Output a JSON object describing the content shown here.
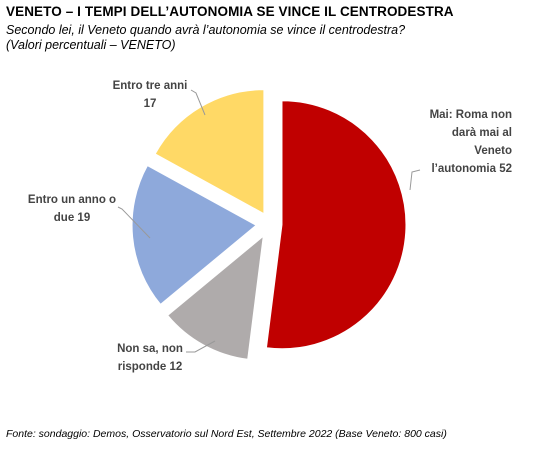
{
  "header": {
    "title": "VENETO – I TEMPI DELL’AUTONOMIA SE VINCE IL CENTRODESTRA",
    "subtitle_line1": "Secondo lei, il Veneto quando avrà l’autonomia se vince il centrodestra?",
    "subtitle_line2": "(Valori percentuali – VENETO)"
  },
  "source": "Fonte: sondaggio: Demos, Osservatorio sul Nord Est, Settembre 2022 (Base Veneto: 800 casi)",
  "chart_data": {
    "type": "pie",
    "title": "VENETO – I TEMPI DELL’AUTONOMIA SE VINCE IL CENTRODESTRA",
    "slices": [
      {
        "label_lines": [
          "Mai: Roma non",
          "darà mai al",
          "Veneto",
          "l’autonomia 52"
        ],
        "value": 52,
        "color": "#C00000"
      },
      {
        "label_lines": [
          "Non sa, non",
          "risponde 12"
        ],
        "value": 12,
        "color": "#AFABAB"
      },
      {
        "label_lines": [
          "Entro un anno o",
          "due 19"
        ],
        "value": 19,
        "color": "#8EA9DB"
      },
      {
        "label_lines": [
          "Entro tre anni",
          "17"
        ],
        "value": 17,
        "color": "#FFD966"
      }
    ]
  }
}
